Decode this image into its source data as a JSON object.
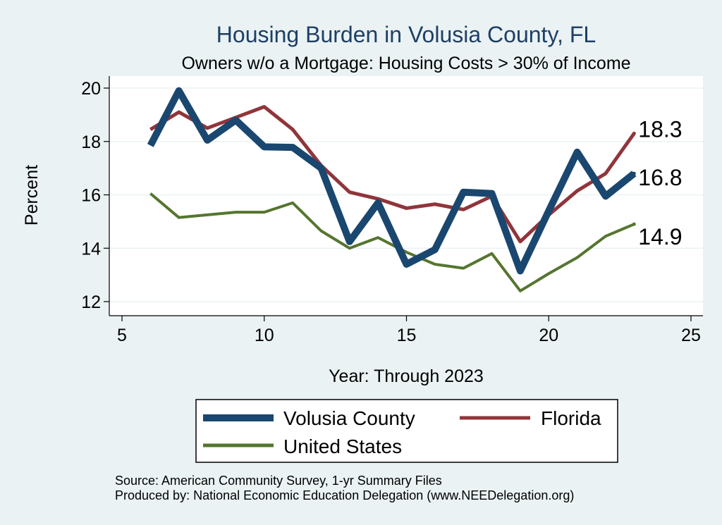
{
  "chart_data": {
    "type": "line",
    "title": "Housing Burden in Volusia County, FL",
    "subtitle": "Owners w/o a Mortgage: Housing Costs > 30% of Income",
    "xlabel": "Year: Through 2023",
    "ylabel": "Percent",
    "xlim": [
      5,
      25
    ],
    "ylim": [
      12,
      20
    ],
    "xticks": [
      5,
      10,
      15,
      20,
      25
    ],
    "yticks": [
      12,
      14,
      16,
      18,
      20
    ],
    "grid": true,
    "legend_placement": "bottom",
    "x": [
      6,
      7,
      8,
      9,
      10,
      11,
      12,
      13,
      14,
      15,
      16,
      17,
      18,
      19,
      20,
      21,
      22,
      23
    ],
    "series": [
      {
        "name": "Volusia County",
        "color": "#1a476f",
        "values": [
          17.85,
          19.9,
          18.05,
          18.8,
          17.8,
          17.78,
          17.0,
          14.25,
          15.7,
          13.4,
          13.95,
          16.1,
          16.05,
          13.15,
          15.4,
          17.6,
          15.95,
          16.8
        ],
        "end_label": "16.8"
      },
      {
        "name": "Florida",
        "color": "#90353b",
        "values": [
          18.45,
          19.1,
          18.5,
          18.9,
          19.3,
          18.45,
          17.1,
          16.1,
          15.85,
          15.5,
          15.65,
          15.45,
          15.95,
          14.25,
          15.25,
          16.15,
          16.8,
          18.3
        ],
        "end_label": "18.3"
      },
      {
        "name": "United States",
        "color": "#55752f",
        "values": [
          16.05,
          15.15,
          15.25,
          15.35,
          15.35,
          15.7,
          14.65,
          14.0,
          14.4,
          13.85,
          13.4,
          13.25,
          13.8,
          12.4,
          13.05,
          13.65,
          14.45,
          14.9
        ],
        "end_label": "14.9"
      }
    ]
  },
  "footnotes": {
    "source": "Source: American Community Survey, 1-yr Summary Files",
    "produced_by": "Produced by: National Economic Education Delegation (www.NEEDelegation.org)"
  }
}
